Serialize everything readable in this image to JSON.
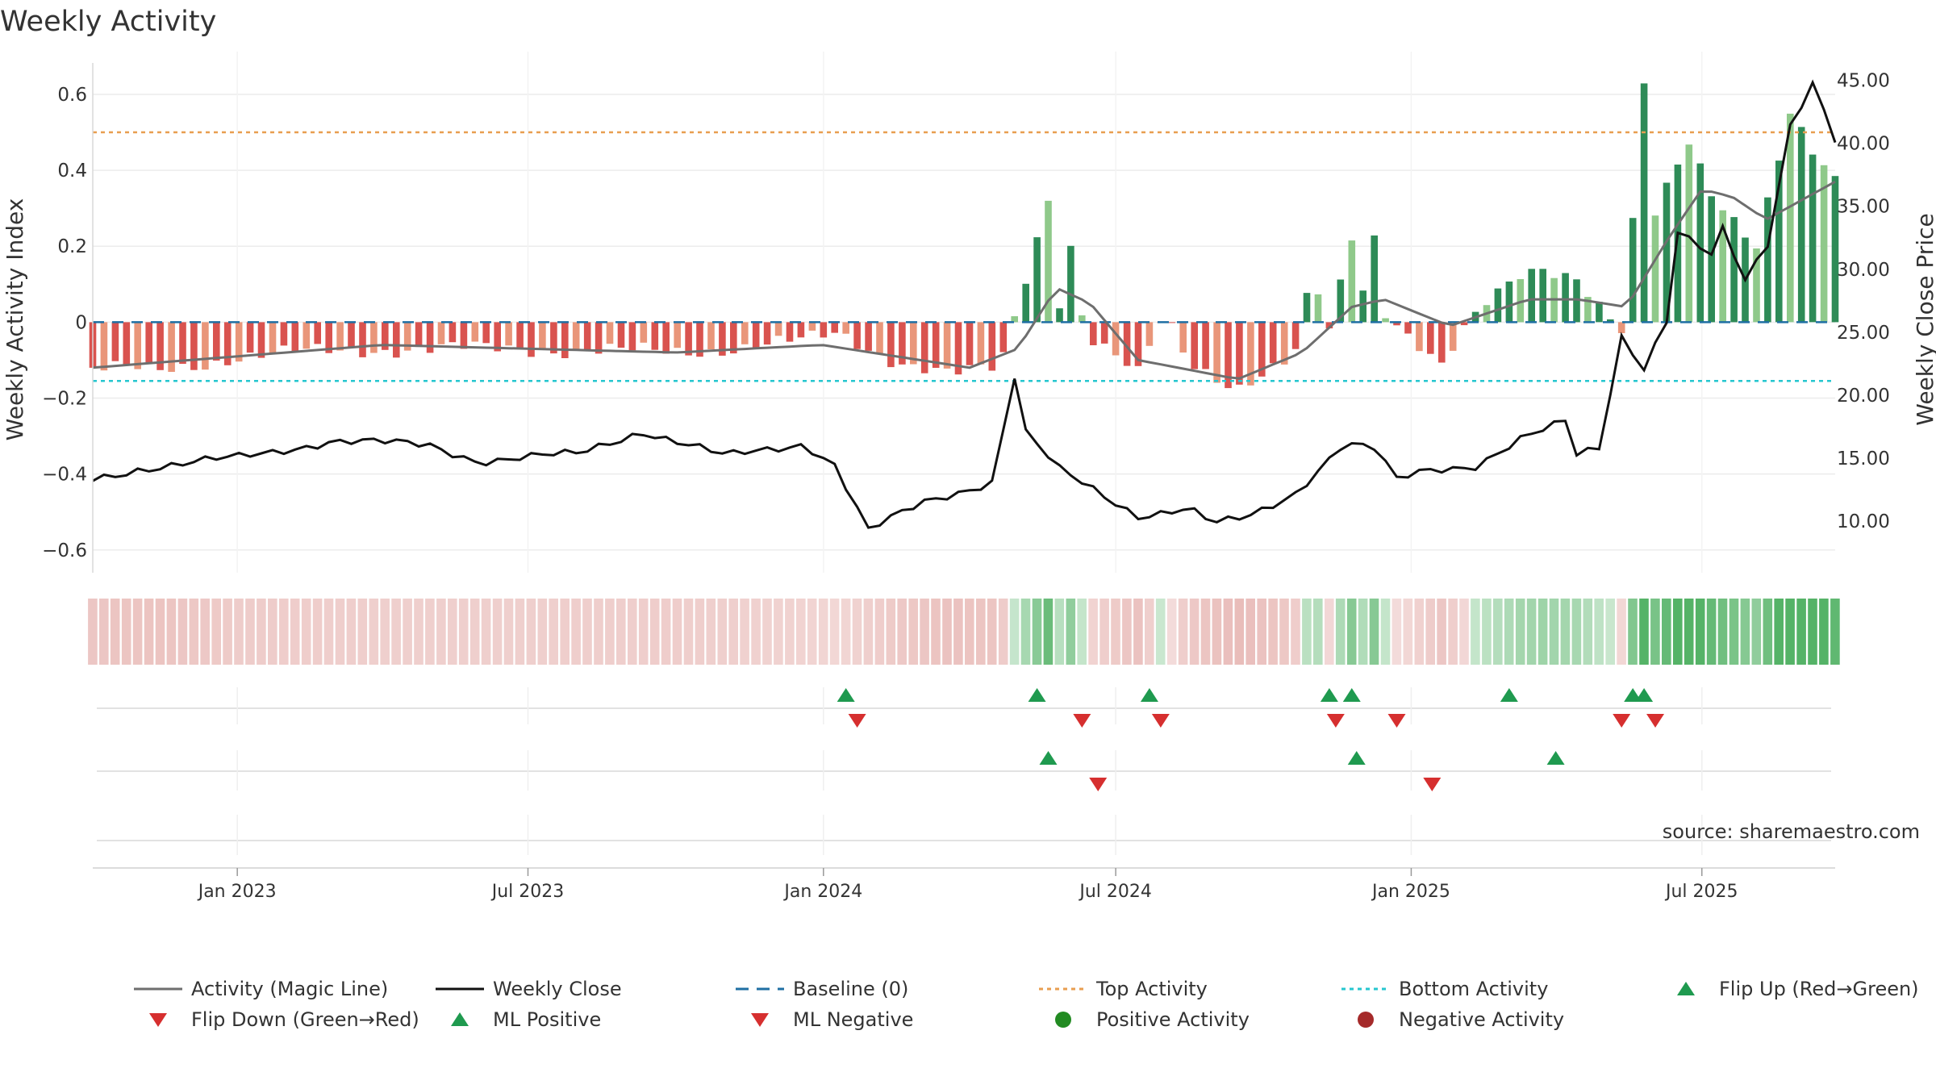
{
  "chart_data": {
    "type": "bar",
    "title": "Weekly Activity",
    "ylabel_left": "Weekly Activity Index",
    "ylabel_right": "Weekly Close Price",
    "source": "source: sharemaestro.com",
    "ylim_left": [
      -0.66,
      0.67
    ],
    "ylim_right": [
      5.9,
      46.0
    ],
    "yticks_left": [
      0.6,
      0.4,
      0.2,
      0,
      -0.2,
      -0.4,
      -0.6
    ],
    "ytick_labels_left": [
      "0.6",
      "0.4",
      "0.2",
      "0",
      "−0.2",
      "−0.4",
      "−0.6"
    ],
    "yticks_right": [
      45,
      40,
      35,
      30,
      25,
      20,
      15,
      10
    ],
    "ytick_labels_right": [
      "45.00",
      "40.00",
      "35.00",
      "30.00",
      "25.00",
      "20.00",
      "15.00",
      "10.00"
    ],
    "x_start": "2022-10-03",
    "x_end": "2025-09-22",
    "xtick_dates": [
      "2023-01-01",
      "2023-07-01",
      "2024-01-01",
      "2024-07-01",
      "2025-01-01",
      "2025-07-01"
    ],
    "xtick_labels": [
      "Jan 2023",
      "Jul 2023",
      "Jan 2024",
      "Jul 2024",
      "Jan 2025",
      "Jul 2025"
    ],
    "top_activity": 0.5,
    "bottom_activity": -0.155,
    "baseline": 0,
    "activity_anchors": [
      {
        "date": "2022-10-03",
        "value": -0.12
      },
      {
        "date": "2022-11-15",
        "value": -0.13
      },
      {
        "date": "2023-01-01",
        "value": -0.09
      },
      {
        "date": "2023-04-01",
        "value": -0.07
      },
      {
        "date": "2023-07-01",
        "value": -0.07
      },
      {
        "date": "2023-10-01",
        "value": -0.08
      },
      {
        "date": "2023-12-20",
        "value": -0.05
      },
      {
        "date": "2024-01-10",
        "value": -0.03
      },
      {
        "date": "2024-02-15",
        "value": -0.1
      },
      {
        "date": "2024-03-20",
        "value": -0.14
      },
      {
        "date": "2024-04-20",
        "value": -0.12
      },
      {
        "date": "2024-05-10",
        "value": 0.18
      },
      {
        "date": "2024-05-20",
        "value": 0.33
      },
      {
        "date": "2024-05-27",
        "value": 0.06
      },
      {
        "date": "2024-06-03",
        "value": 0.2
      },
      {
        "date": "2024-06-10",
        "value": 0.02
      },
      {
        "date": "2024-06-17",
        "value": -0.05
      },
      {
        "date": "2024-07-15",
        "value": -0.14
      },
      {
        "date": "2024-08-01",
        "value": 0.03
      },
      {
        "date": "2024-08-15",
        "value": -0.1
      },
      {
        "date": "2024-09-15",
        "value": -0.17
      },
      {
        "date": "2024-10-20",
        "value": -0.1
      },
      {
        "date": "2024-11-01",
        "value": 0.13
      },
      {
        "date": "2024-11-10",
        "value": -0.04
      },
      {
        "date": "2024-11-18",
        "value": 0.1
      },
      {
        "date": "2024-11-25",
        "value": 0.23
      },
      {
        "date": "2024-12-02",
        "value": 0.09
      },
      {
        "date": "2024-12-09",
        "value": 0.23
      },
      {
        "date": "2024-12-16",
        "value": 0.02
      },
      {
        "date": "2024-12-30",
        "value": -0.03
      },
      {
        "date": "2025-01-20",
        "value": -0.12
      },
      {
        "date": "2025-02-10",
        "value": 0.02
      },
      {
        "date": "2025-03-10",
        "value": 0.13
      },
      {
        "date": "2025-03-24",
        "value": 0.15
      },
      {
        "date": "2025-04-14",
        "value": 0.12
      },
      {
        "date": "2025-04-28",
        "value": 0.04
      },
      {
        "date": "2025-05-12",
        "value": -0.03
      },
      {
        "date": "2025-05-19",
        "value": 0.25
      },
      {
        "date": "2025-05-26",
        "value": 0.62
      },
      {
        "date": "2025-06-02",
        "value": 0.28
      },
      {
        "date": "2025-06-16",
        "value": 0.42
      },
      {
        "date": "2025-06-23",
        "value": 0.48
      },
      {
        "date": "2025-07-07",
        "value": 0.35
      },
      {
        "date": "2025-08-04",
        "value": 0.2
      },
      {
        "date": "2025-08-25",
        "value": 0.54
      },
      {
        "date": "2025-09-08",
        "value": 0.44
      },
      {
        "date": "2025-09-22",
        "value": 0.37
      }
    ],
    "activity_bar_colors": {
      "strong_positive": "#2e8b57",
      "weak_positive": "#8fc98a",
      "strong_negative": "#d9534f",
      "weak_negative": "#e9967a"
    },
    "magic_line_anchors": [
      {
        "date": "2022-10-03",
        "value": -0.12
      },
      {
        "date": "2023-01-01",
        "value": -0.09
      },
      {
        "date": "2023-04-01",
        "value": -0.06
      },
      {
        "date": "2023-07-01",
        "value": -0.07
      },
      {
        "date": "2023-10-01",
        "value": -0.08
      },
      {
        "date": "2023-12-31",
        "value": -0.06
      },
      {
        "date": "2024-02-15",
        "value": -0.09
      },
      {
        "date": "2024-04-01",
        "value": -0.12
      },
      {
        "date": "2024-05-01",
        "value": -0.07
      },
      {
        "date": "2024-05-25",
        "value": 0.09
      },
      {
        "date": "2024-06-15",
        "value": 0.05
      },
      {
        "date": "2024-07-15",
        "value": -0.1
      },
      {
        "date": "2024-09-15",
        "value": -0.15
      },
      {
        "date": "2024-10-25",
        "value": -0.08
      },
      {
        "date": "2024-11-25",
        "value": 0.04
      },
      {
        "date": "2024-12-15",
        "value": 0.06
      },
      {
        "date": "2025-01-25",
        "value": -0.01
      },
      {
        "date": "2025-03-15",
        "value": 0.06
      },
      {
        "date": "2025-04-15",
        "value": 0.06
      },
      {
        "date": "2025-05-15",
        "value": 0.04
      },
      {
        "date": "2025-06-10",
        "value": 0.22
      },
      {
        "date": "2025-07-01",
        "value": 0.35
      },
      {
        "date": "2025-07-20",
        "value": 0.33
      },
      {
        "date": "2025-08-10",
        "value": 0.27
      },
      {
        "date": "2025-09-22",
        "value": 0.37
      }
    ],
    "weekly_close_anchors": [
      {
        "date": "2022-10-03",
        "value": 13.3
      },
      {
        "date": "2022-11-01",
        "value": 14.2
      },
      {
        "date": "2023-01-01",
        "value": 15.0
      },
      {
        "date": "2023-03-01",
        "value": 16.4
      },
      {
        "date": "2023-05-01",
        "value": 16.0
      },
      {
        "date": "2023-06-01",
        "value": 14.8
      },
      {
        "date": "2023-08-01",
        "value": 15.3
      },
      {
        "date": "2023-09-10",
        "value": 17.2
      },
      {
        "date": "2023-11-01",
        "value": 15.1
      },
      {
        "date": "2023-12-20",
        "value": 16.2
      },
      {
        "date": "2024-01-08",
        "value": 14.5
      },
      {
        "date": "2024-01-29",
        "value": 9.2
      },
      {
        "date": "2024-03-04",
        "value": 11.5
      },
      {
        "date": "2024-04-15",
        "value": 13.2
      },
      {
        "date": "2024-04-29",
        "value": 21.5
      },
      {
        "date": "2024-05-06",
        "value": 17.0
      },
      {
        "date": "2024-05-27",
        "value": 14.0
      },
      {
        "date": "2024-07-15",
        "value": 10.5
      },
      {
        "date": "2024-08-15",
        "value": 11.0
      },
      {
        "date": "2024-09-01",
        "value": 9.7
      },
      {
        "date": "2024-09-22",
        "value": 10.3
      },
      {
        "date": "2024-10-20",
        "value": 12.2
      },
      {
        "date": "2024-11-20",
        "value": 16.2
      },
      {
        "date": "2024-12-09",
        "value": 15.7
      },
      {
        "date": "2024-12-23",
        "value": 13.2
      },
      {
        "date": "2025-01-10",
        "value": 14.0
      },
      {
        "date": "2025-02-10",
        "value": 14.5
      },
      {
        "date": "2025-03-10",
        "value": 16.5
      },
      {
        "date": "2025-04-07",
        "value": 17.8
      },
      {
        "date": "2025-04-14",
        "value": 15.2
      },
      {
        "date": "2025-04-28",
        "value": 15.8
      },
      {
        "date": "2025-05-12",
        "value": 24.7
      },
      {
        "date": "2025-05-26",
        "value": 22.3
      },
      {
        "date": "2025-06-09",
        "value": 26.0
      },
      {
        "date": "2025-06-16",
        "value": 33.0
      },
      {
        "date": "2025-07-07",
        "value": 31.0
      },
      {
        "date": "2025-07-14",
        "value": 33.0
      },
      {
        "date": "2025-07-28",
        "value": 29.0
      },
      {
        "date": "2025-08-11",
        "value": 32.0
      },
      {
        "date": "2025-08-25",
        "value": 41.5
      },
      {
        "date": "2025-09-08",
        "value": 45.0
      },
      {
        "date": "2025-09-22",
        "value": 40.4
      }
    ],
    "strip": {
      "positive_color": "#4caf5f",
      "negative_color": "#d98b86"
    },
    "flip_up_dates": [
      "2024-01-15",
      "2024-05-13",
      "2024-07-22",
      "2024-11-11",
      "2024-11-25",
      "2025-03-03",
      "2025-05-19",
      "2025-05-26"
    ],
    "flip_down_dates": [
      "2024-01-22",
      "2024-06-10",
      "2024-07-29",
      "2024-11-15",
      "2024-12-23",
      "2025-05-12",
      "2025-06-02"
    ],
    "ml_positive_dates": [
      "2024-05-20",
      "2024-11-28",
      "2025-04-01"
    ],
    "ml_negative_dates": [
      "2024-06-20",
      "2025-01-14"
    ],
    "colors": {
      "magic_line": "#6e6e6e",
      "weekly_close": "#111111",
      "baseline": "#1f6fa3",
      "top_activity": "#e89e50",
      "bottom_activity": "#26c6cf",
      "marker_up": "#1f9a4f",
      "marker_down": "#d62f2f",
      "positive_activity": "#228b22",
      "negative_activity": "#a52a2a"
    },
    "legend": [
      {
        "label": "Activity (Magic Line)",
        "kind": "line"
      },
      {
        "label": "Weekly Close",
        "kind": "close"
      },
      {
        "label": "Baseline (0)",
        "kind": "baseline"
      },
      {
        "label": "Top Activity",
        "kind": "top"
      },
      {
        "label": "Bottom Activity",
        "kind": "bottom"
      },
      {
        "label": "Flip Up (Red→Green)",
        "kind": "tri-up"
      },
      {
        "label": "Flip Down (Green→Red)",
        "kind": "tri-down"
      },
      {
        "label": "ML Positive",
        "kind": "tri-up"
      },
      {
        "label": "ML Negative",
        "kind": "tri-down"
      },
      {
        "label": "Positive Activity",
        "kind": "dot-pos"
      },
      {
        "label": "Negative Activity",
        "kind": "dot-neg"
      }
    ]
  }
}
